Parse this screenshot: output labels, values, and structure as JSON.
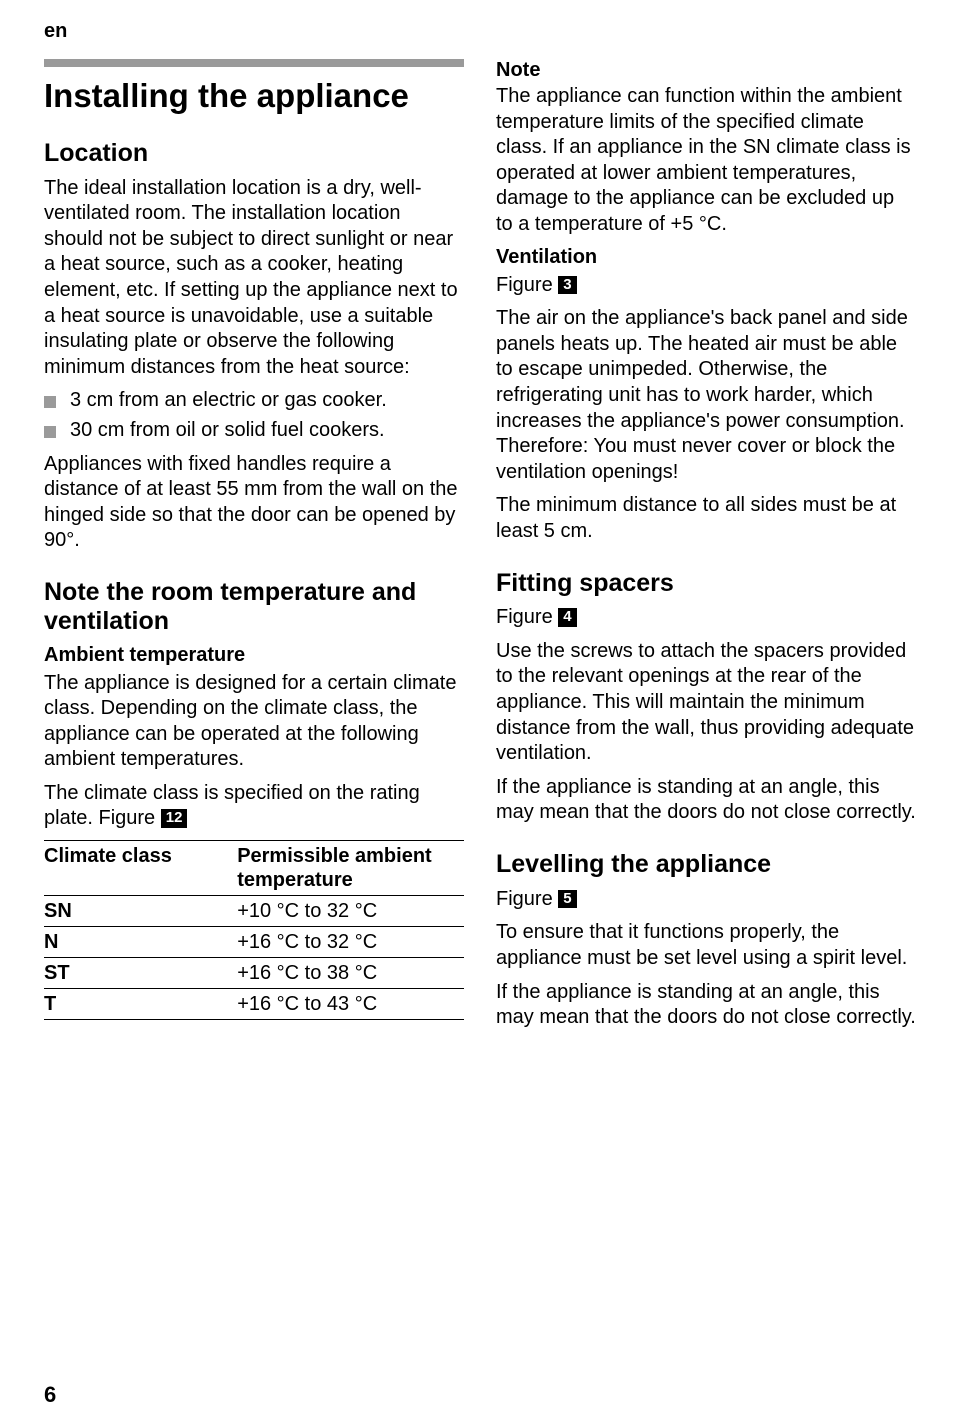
{
  "header": {
    "lang": "en"
  },
  "left": {
    "title": "Installing the appliance",
    "location": {
      "heading": "Location",
      "p1": "The ideal installation location is a dry, well-ventilated room. The installation location should not be subject to direct sunlight or near a heat source, such as a cooker, heating element, etc. If setting up the appliance next to a heat source is unavoidable, use a suitable insulating plate or observe the following minimum distances from the heat source:",
      "bullets": [
        "3 cm from an electric or gas cooker.",
        "30 cm from oil or solid fuel cookers."
      ],
      "p2": "Appliances with fixed handles require a distance of at least 55 mm from the wall on the hinged side so that the door can be opened by 90°."
    },
    "roomtemp": {
      "heading": "Note the room temperature and ventilation",
      "ambient_heading": "Ambient temperature",
      "p1": "The appliance is designed for a certain climate class. Depending on the climate class, the appliance can be operated at the following ambient temperatures.",
      "p2_pre": "The climate class is specified on the rating plate. Figure ",
      "fig": "12",
      "table": {
        "columns": [
          "Climate class",
          "Permissible ambient temperature"
        ],
        "rows": [
          [
            "SN",
            "+10 °C to 32 °C"
          ],
          [
            "N",
            "+16 °C to 32 °C"
          ],
          [
            "ST",
            "+16 °C to 38 °C"
          ],
          [
            "T",
            "+16 °C to 43 °C"
          ]
        ]
      }
    }
  },
  "right": {
    "note": {
      "label": "Note",
      "p1": "The appliance can function within the ambient temperature limits of the specified climate class. If an appliance in the SN climate class is operated at lower ambient temperatures, damage to the appliance can be excluded up to a temperature of +5 °C."
    },
    "ventilation": {
      "heading": "Ventilation",
      "figure_label": "Figure ",
      "fig": "3",
      "p1": "The air on the appliance's back panel and side panels heats up. The heated air must be able to escape unimpeded. Otherwise, the refrigerating unit has to work harder, which increases the appliance's power consumption. Therefore: You must never cover or block the ventilation openings!",
      "p2": "The minimum distance to all sides must be at least 5 cm."
    },
    "spacers": {
      "heading": "Fitting spacers",
      "figure_label": "Figure ",
      "fig": "4",
      "p1": "Use the screws to attach the spacers provided to the relevant openings at the rear of the appliance. This will maintain the minimum distance from the wall, thus providing adequate ventilation.",
      "p2": "If the appliance is standing at an angle, this may mean that the doors do not close correctly."
    },
    "levelling": {
      "heading": "Levelling the appliance",
      "figure_label": "Figure ",
      "fig": "5",
      "p1": "To ensure that it functions properly, the appliance must be set level using a spirit level.",
      "p2": "If the appliance is standing at an angle, this may mean that the doors do not close correctly."
    }
  },
  "footer": {
    "page": "6"
  }
}
